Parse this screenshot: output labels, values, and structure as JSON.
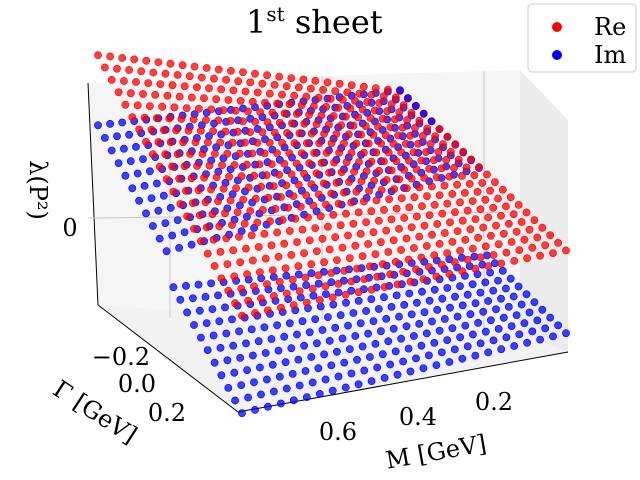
{
  "chart_data": {
    "type": "scatter3d",
    "title": "1",
    "title_sup": "st",
    "title_rest": " sheet",
    "xlabel": "M [GeV]",
    "ylabel": "Γ [GeV]",
    "zlabel": "λ(P²)",
    "x_ticks": [
      "0.6",
      "0.4",
      "0.2"
    ],
    "y_ticks": [
      "−0.2",
      "0.0",
      "0.2"
    ],
    "z_ticks": [
      "0"
    ],
    "xlim": [
      0.1,
      0.8
    ],
    "ylim": [
      -0.3,
      0.3
    ],
    "zlim": [
      -1.0,
      1.0
    ],
    "legend": {
      "position": "top-right",
      "entries": [
        {
          "label": "Re",
          "color": "#ff0000"
        },
        {
          "label": "Im",
          "color": "#0000ff"
        }
      ]
    },
    "series": [
      {
        "name": "Re",
        "color": "#ff0000",
        "description": "sampled grid over M in [0.1,0.8], Γ in [-0.3,0.3]"
      },
      {
        "name": "Im",
        "color": "#0000ff",
        "description": "sampled grid, sign flips across Γ = 0"
      }
    ]
  }
}
